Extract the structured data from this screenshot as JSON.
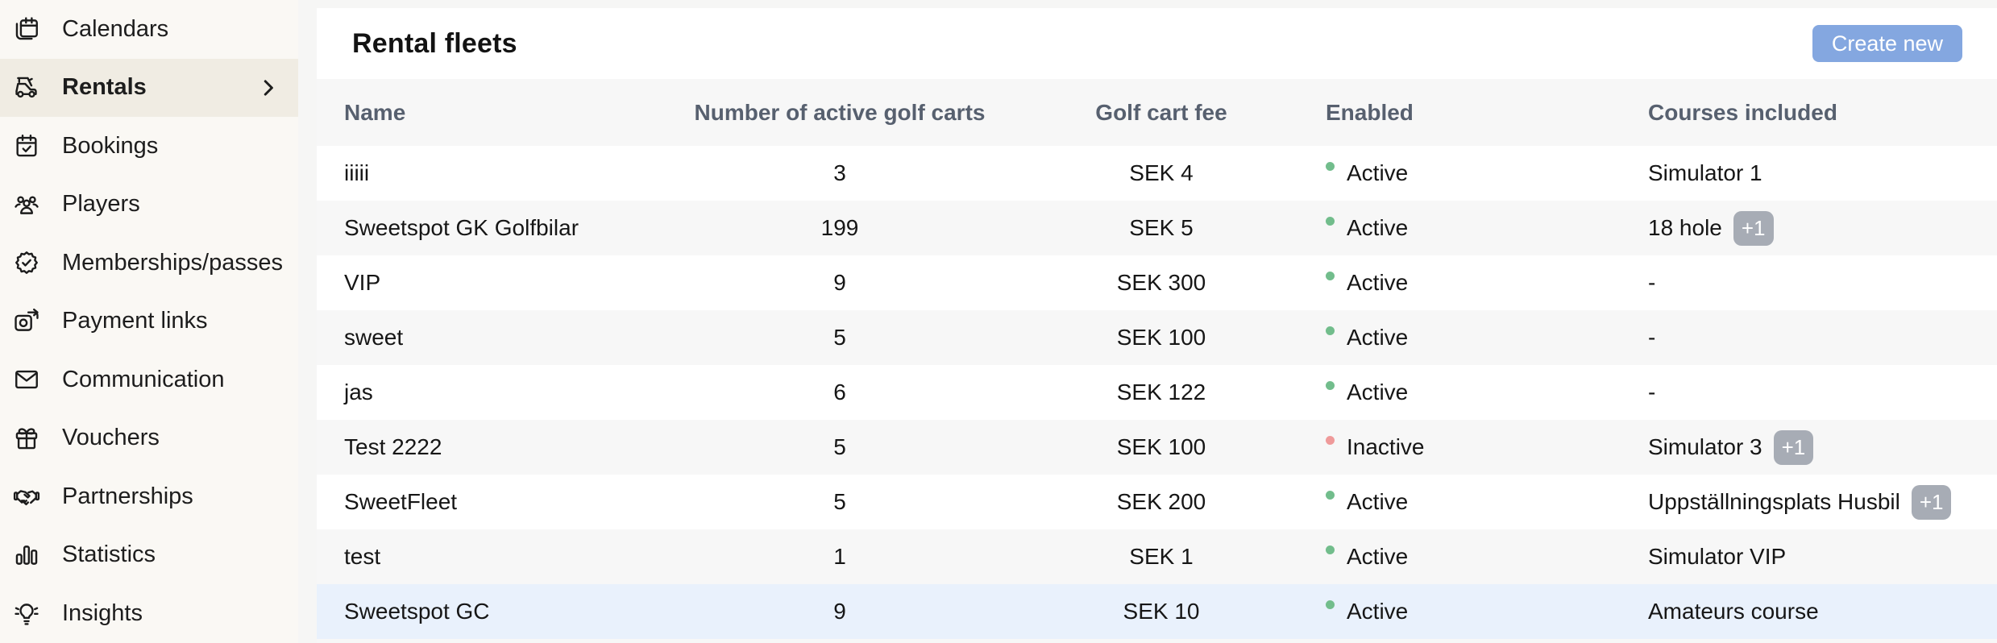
{
  "sidebar": {
    "items": [
      {
        "label": "Calendars",
        "icon": "calendars-icon"
      },
      {
        "label": "Rentals",
        "icon": "golf-cart-icon",
        "active": true,
        "chevron": true
      },
      {
        "label": "Bookings",
        "icon": "booking-calendar-icon"
      },
      {
        "label": "Players",
        "icon": "players-icon"
      },
      {
        "label": "Memberships/passes",
        "icon": "membership-badge-icon"
      },
      {
        "label": "Payment links",
        "icon": "payment-link-icon"
      },
      {
        "label": "Communication",
        "icon": "envelope-icon"
      },
      {
        "label": "Vouchers",
        "icon": "gift-icon"
      },
      {
        "label": "Partnerships",
        "icon": "handshake-icon"
      },
      {
        "label": "Statistics",
        "icon": "bar-chart-icon"
      },
      {
        "label": "Insights",
        "icon": "lightbulb-icon"
      }
    ]
  },
  "header": {
    "title": "Rental fleets",
    "create_button_label": "Create new"
  },
  "table": {
    "columns": [
      "Name",
      "Number of active golf carts",
      "Golf cart fee",
      "Enabled",
      "Courses included"
    ],
    "rows": [
      {
        "name": "iiiii",
        "carts": "3",
        "fee": "SEK 4",
        "status": "Active",
        "courses": "Simulator 1"
      },
      {
        "name": "Sweetspot GK Golfbilar",
        "carts": "199",
        "fee": "SEK 5",
        "status": "Active",
        "courses": "18 hole",
        "extra": "+1"
      },
      {
        "name": "VIP",
        "carts": "9",
        "fee": "SEK 300",
        "status": "Active",
        "courses": "-"
      },
      {
        "name": "sweet",
        "carts": "5",
        "fee": "SEK 100",
        "status": "Active",
        "courses": "-"
      },
      {
        "name": "jas",
        "carts": "6",
        "fee": "SEK 122",
        "status": "Active",
        "courses": "-"
      },
      {
        "name": "Test 2222",
        "carts": "5",
        "fee": "SEK 100",
        "status": "Inactive",
        "courses": "Simulator 3",
        "extra": "+1"
      },
      {
        "name": "SweetFleet",
        "carts": "5",
        "fee": "SEK 200",
        "status": "Active",
        "courses": "Uppställningsplats Husbil",
        "extra": "+1"
      },
      {
        "name": "test",
        "carts": "1",
        "fee": "SEK 1",
        "status": "Active",
        "courses": "Simulator VIP"
      },
      {
        "name": "Sweetspot GC",
        "carts": "9",
        "fee": "SEK 10",
        "status": "Active",
        "courses": "Amateurs course",
        "highlighted": true
      }
    ]
  },
  "colors": {
    "accent": "#84a7e0",
    "sidebar_active_bg": "#f0ece3",
    "row_alt": "#f7f7f7",
    "row_highlight": "#e9f1fc",
    "dot_active": "#72bd8c",
    "dot_inactive": "#ef9a9a",
    "badge": "#a7acb5",
    "header_text": "#57606f"
  }
}
